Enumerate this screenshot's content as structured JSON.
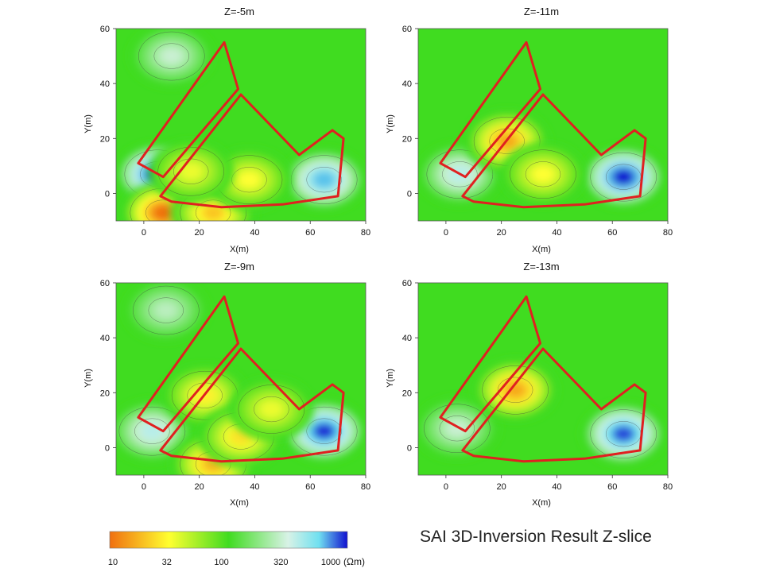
{
  "figure_title": "SAI 3D-Inversion Result Z-slice",
  "colors": {
    "survey_outline": "#e02020",
    "contour_line": "#3a3a3a",
    "scale_10": "#f07010",
    "scale_32": "#ffff30",
    "scale_100": "#40dc20",
    "scale_320": "#d8f2e6",
    "scale_1000": "#1010d0"
  },
  "chart_data": [
    {
      "type": "heatmap",
      "title": "Z=-5m",
      "xlabel": "X(m)",
      "ylabel": "Y(m)",
      "xlim": [
        -10,
        80
      ],
      "ylim": [
        -10,
        60
      ],
      "xticks": [
        "0",
        "20",
        "40",
        "60",
        "80"
      ],
      "yticks": [
        "0",
        "20",
        "40",
        "60"
      ],
      "anomalies": [
        {
          "type": "high",
          "x": 5,
          "y": 7,
          "log_res": 3.2
        },
        {
          "type": "high",
          "x": 65,
          "y": 5,
          "log_res": 2.9
        },
        {
          "type": "high",
          "x": 10,
          "y": 50,
          "log_res": 2.45
        },
        {
          "type": "low",
          "x": 7,
          "y": -7,
          "log_res": 1.0
        },
        {
          "type": "low",
          "x": 25,
          "y": -7,
          "log_res": 1.3
        },
        {
          "type": "low",
          "x": 38,
          "y": 5,
          "log_res": 1.5
        },
        {
          "type": "low",
          "x": 17,
          "y": 8,
          "log_res": 1.55
        }
      ]
    },
    {
      "type": "heatmap",
      "title": "Z=-11m",
      "xlabel": "X(m)",
      "ylabel": "Y(m)",
      "xlim": [
        -10,
        80
      ],
      "ylim": [
        -10,
        60
      ],
      "xticks": [
        "0",
        "20",
        "40",
        "60",
        "80"
      ],
      "yticks": [
        "0",
        "20",
        "40",
        "60"
      ],
      "anomalies": [
        {
          "type": "high",
          "x": 64,
          "y": 6,
          "log_res": 3.2
        },
        {
          "type": "high",
          "x": 5,
          "y": 7,
          "log_res": 2.6
        },
        {
          "type": "low",
          "x": 22,
          "y": 19,
          "log_res": 1.2
        },
        {
          "type": "low",
          "x": 35,
          "y": 7,
          "log_res": 1.5
        }
      ]
    },
    {
      "type": "heatmap",
      "title": "Z=-9m",
      "xlabel": "X(m)",
      "ylabel": "Y(m)",
      "xlim": [
        -10,
        80
      ],
      "ylim": [
        -10,
        60
      ],
      "xticks": [
        "0",
        "20",
        "40",
        "60",
        "80"
      ],
      "yticks": [
        "0",
        "20",
        "40",
        "60"
      ],
      "anomalies": [
        {
          "type": "high",
          "x": 65,
          "y": 6,
          "log_res": 3.15
        },
        {
          "type": "high",
          "x": 3,
          "y": 6,
          "log_res": 2.6
        },
        {
          "type": "high",
          "x": 8,
          "y": 50,
          "log_res": 2.4
        },
        {
          "type": "low",
          "x": 25,
          "y": -6,
          "log_res": 1.25
        },
        {
          "type": "low",
          "x": 22,
          "y": 19,
          "log_res": 1.45
        },
        {
          "type": "low",
          "x": 35,
          "y": 4,
          "log_res": 1.4
        },
        {
          "type": "low",
          "x": 46,
          "y": 14,
          "log_res": 1.55
        }
      ]
    },
    {
      "type": "heatmap",
      "title": "Z=-13m",
      "xlabel": "X(m)",
      "ylabel": "Y(m)",
      "xlim": [
        -10,
        80
      ],
      "ylim": [
        -10,
        60
      ],
      "xticks": [
        "0",
        "20",
        "40",
        "60",
        "80"
      ],
      "yticks": [
        "0",
        "20",
        "40",
        "60"
      ],
      "anomalies": [
        {
          "type": "high",
          "x": 64,
          "y": 5,
          "log_res": 3.1
        },
        {
          "type": "high",
          "x": 4,
          "y": 7,
          "log_res": 2.45
        },
        {
          "type": "low",
          "x": 25,
          "y": 21,
          "log_res": 1.2
        }
      ]
    }
  ],
  "survey_outline": {
    "polygon_a": [
      [
        -2,
        11
      ],
      [
        29,
        55
      ],
      [
        34,
        38
      ],
      [
        7,
        6
      ]
    ],
    "polygon_b": [
      [
        6,
        -1
      ],
      [
        35,
        36
      ],
      [
        56,
        14
      ],
      [
        68,
        23
      ],
      [
        72,
        20
      ],
      [
        70,
        -1
      ],
      [
        50,
        -4
      ],
      [
        28,
        -5
      ],
      [
        10,
        -3
      ]
    ]
  },
  "colorbar": {
    "ticks": [
      "10",
      "32",
      "100",
      "320",
      "1000"
    ],
    "unit": "(Ωm)"
  }
}
